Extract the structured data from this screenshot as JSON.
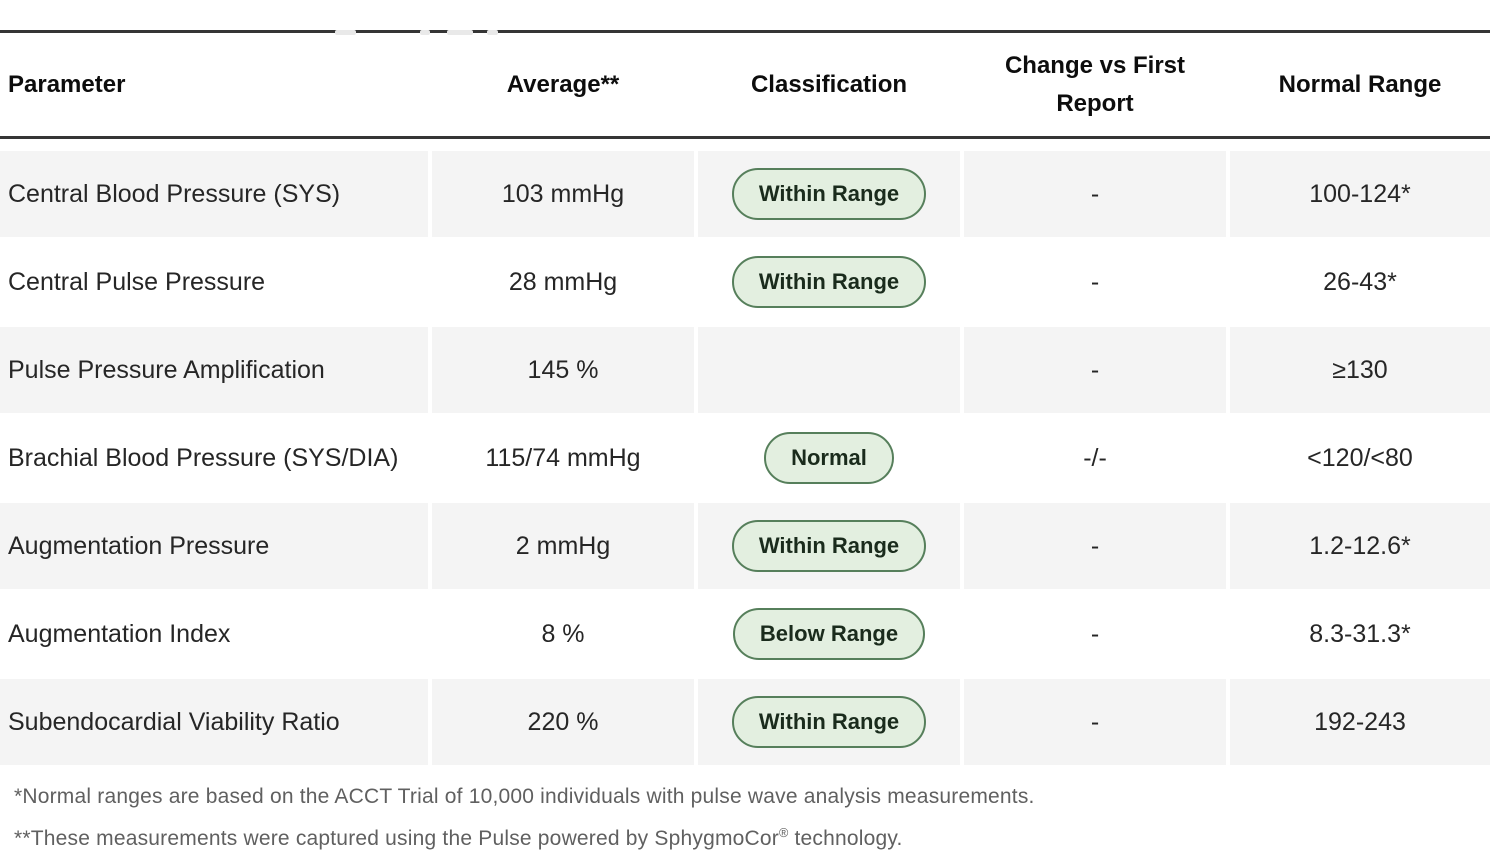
{
  "colors": {
    "row_stripe_background": "#f4f4f4",
    "badge_background": "#e3efe0",
    "badge_border": "#567f5b",
    "badge_text": "#1a2b1c",
    "header_rule": "#353535",
    "footnote_text": "#606060"
  },
  "table": {
    "headers": [
      "Parameter",
      "Average**",
      "Classification",
      "Change vs First Report",
      "Normal Range"
    ],
    "rows": [
      {
        "parameter": "Central Blood Pressure (SYS)",
        "average": "103 mmHg",
        "classification": "Within Range",
        "change": "-",
        "normal_range": "100-124*"
      },
      {
        "parameter": "Central Pulse Pressure",
        "average": "28 mmHg",
        "classification": "Within Range",
        "change": "-",
        "normal_range": "26-43*"
      },
      {
        "parameter": "Pulse Pressure Amplification",
        "average": "145 %",
        "classification": "",
        "change": "-",
        "normal_range": "≥130"
      },
      {
        "parameter": "Brachial Blood Pressure (SYS/DIA)",
        "average": "115/74 mmHg",
        "classification": "Normal",
        "change": "-/-",
        "normal_range": "<120/<80"
      },
      {
        "parameter": "Augmentation Pressure",
        "average": "2 mmHg",
        "classification": "Within Range",
        "change": "-",
        "normal_range": "1.2-12.6*"
      },
      {
        "parameter": "Augmentation Index",
        "average": "8 %",
        "classification": "Below Range",
        "change": "-",
        "normal_range": "8.3-31.3*"
      },
      {
        "parameter": "Subendocardial Viability Ratio",
        "average": "220 %",
        "classification": "Within Range",
        "change": "-",
        "normal_range": "192-243"
      }
    ]
  },
  "footnotes": {
    "first": "*Normal ranges are based on the ACCT Trial of 10,000 individuals with pulse wave analysis measurements.",
    "second_prefix": "**These measurements were captured using the Pulse powered by SphygmoCor",
    "second_reg_mark": "®",
    "second_suffix": " technology."
  }
}
